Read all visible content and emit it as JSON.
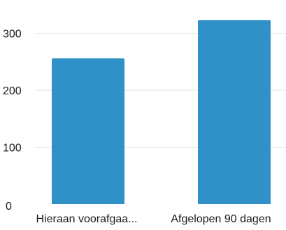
{
  "chart_data": {
    "type": "bar",
    "title": "",
    "xlabel": "",
    "ylabel": "",
    "categories": [
      "Hieraan voorafgaa...",
      "Afgelopen 90 dagen"
    ],
    "values": [
      256,
      323
    ],
    "ylim": [
      0,
      340
    ],
    "yticks": [
      0,
      100,
      200,
      300
    ],
    "grid": true,
    "legend": "none",
    "colors": {
      "bar": "#3090c8",
      "grid": "#e0e0e0",
      "text": "#1a1a1a"
    }
  }
}
